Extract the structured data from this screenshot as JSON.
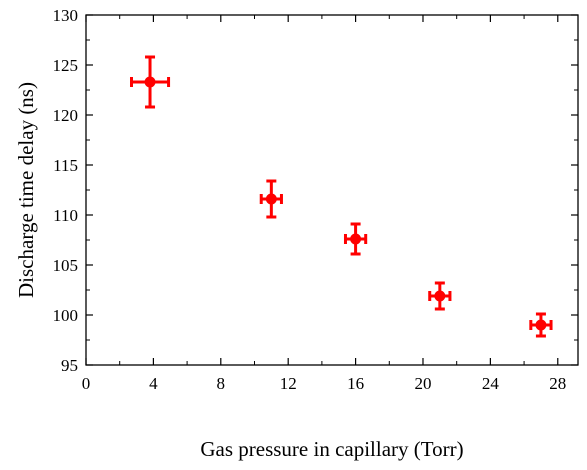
{
  "chart_data": {
    "type": "scatter",
    "xlabel": "Gas pressure in capillary (Torr)",
    "ylabel": "Discharge time delay (ns)",
    "xlim": [
      0,
      29.2
    ],
    "ylim": [
      95,
      130
    ],
    "xticks": [
      0,
      4,
      8,
      12,
      16,
      20,
      24,
      28
    ],
    "yticks": [
      95,
      100,
      105,
      110,
      115,
      120,
      125,
      130
    ],
    "x_tick_labels": [
      "0",
      "4",
      "8",
      "12",
      "16",
      "20",
      "24",
      "28"
    ],
    "y_tick_labels": [
      "95",
      "100",
      "105",
      "110",
      "115",
      "120",
      "125",
      "130"
    ],
    "grid": false,
    "marker_color": "#ff0000",
    "series": [
      {
        "points": [
          {
            "x": 3.8,
            "y": 123.3,
            "xerr": 1.1,
            "yerr": 2.5
          },
          {
            "x": 11.0,
            "y": 111.6,
            "xerr": 0.6,
            "yerr": 1.8
          },
          {
            "x": 16.0,
            "y": 107.6,
            "xerr": 0.6,
            "yerr": 1.5
          },
          {
            "x": 21.0,
            "y": 101.9,
            "xerr": 0.6,
            "yerr": 1.3
          },
          {
            "x": 27.0,
            "y": 99.0,
            "xerr": 0.6,
            "yerr": 1.1
          }
        ]
      }
    ]
  }
}
